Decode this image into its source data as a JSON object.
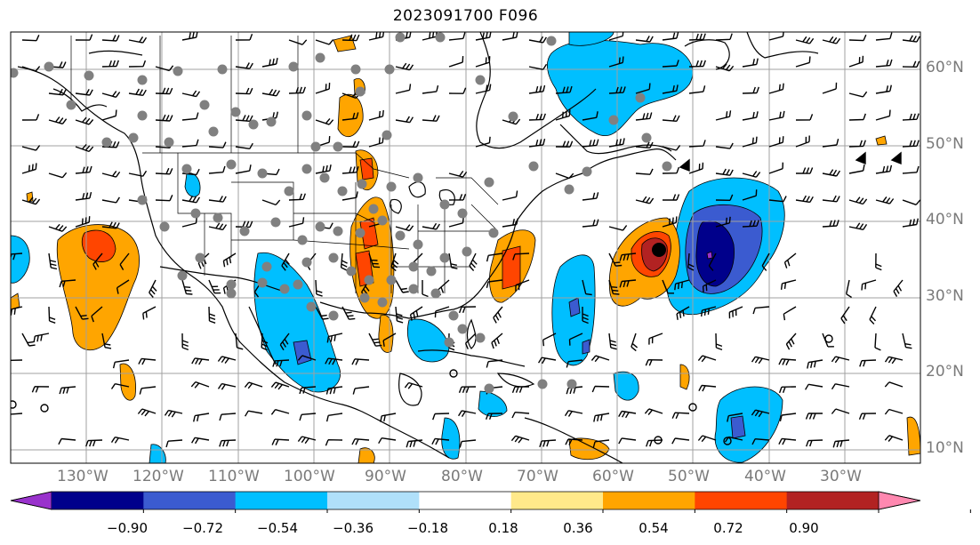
{
  "title": "2023091700 F096",
  "map": {
    "lon_range": [
      -142,
      -22
    ],
    "lat_range": [
      8,
      65
    ],
    "lat_labels": [
      "10°N",
      "20°N",
      "30°N",
      "40°N",
      "50°N",
      "60°N"
    ],
    "lat_values": [
      10,
      20,
      30,
      40,
      50,
      60
    ],
    "lon_labels": [
      "130°W",
      "120°W",
      "110°W",
      "100°W",
      "90°W",
      "80°W",
      "70°W",
      "60°W",
      "50°W",
      "40°W",
      "30°W"
    ],
    "lon_values": [
      -130,
      -120,
      -110,
      -100,
      -90,
      -80,
      -70,
      -60,
      -50,
      -40,
      -30
    ],
    "gridlines": true,
    "storm_center": {
      "lon": -54,
      "lat": 36
    }
  },
  "colorbar": {
    "labels": [
      "−0.90",
      "−0.72",
      "−0.54",
      "−0.36",
      "−0.18",
      "0.18",
      "0.36",
      "0.54",
      "0.72",
      "0.90"
    ],
    "colors": [
      "#9932cc",
      "#00008b",
      "#3b5bd0",
      "#00bfff",
      "#b0e0fa",
      "#ffffff",
      "#ffe98a",
      "#ffa500",
      "#ff4500",
      "#b22222",
      "#ff88b0"
    ],
    "extend": "both"
  },
  "legend_colors": {
    "gray_dots": "#808080",
    "coast": "#000000"
  }
}
